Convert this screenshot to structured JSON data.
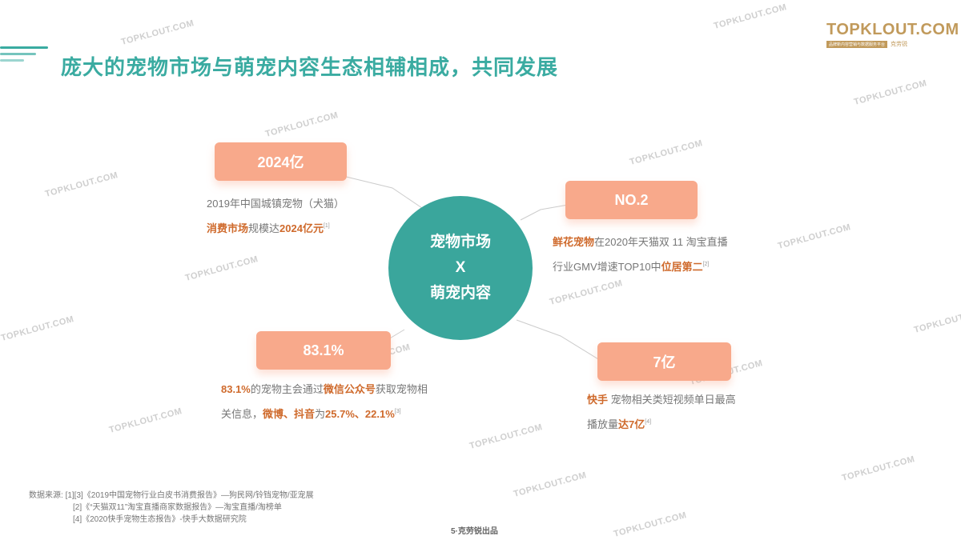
{
  "header": {
    "title": "庞大的宠物市场与萌宠内容生态相辅相成，共同发展"
  },
  "logo": {
    "main": "TOPKLOUT.COM",
    "tagline": "品牌新内容营销与数据服务平台",
    "cn": "克劳锐"
  },
  "watermark": "TOPKLOUT.COM",
  "center": {
    "line1": "宠物市场",
    "line2": "X",
    "line3": "萌宠内容"
  },
  "colors": {
    "teal": "#3aa69c",
    "salmon": "#f8a98b",
    "highlight": "#cf6a2c"
  },
  "cards": [
    {
      "value": "2024亿",
      "l1": "2019年中国城镇宠物（犬猫）",
      "l2a": "消费市场",
      "l2b": "规模达",
      "l2c": "2024亿元",
      "ref": "[1]"
    },
    {
      "value": "NO.2",
      "l1a": "鲜花宠物",
      "l1b": "在2020年天猫双 11 淘宝直播",
      "l2a": "行业GMV增速TOP10中",
      "l2b": "位居第二",
      "ref": "[2]"
    },
    {
      "value": "83.1%",
      "l1a": "83.1%",
      "l1b": "的宠物主会通过",
      "l1c": "微信公众号",
      "l1d": "获取宠物相",
      "l2a": "关信息，",
      "l2b": "微博、抖音",
      "l2c": "为",
      "l2d": "25.7%、22.1%",
      "ref": "[3]"
    },
    {
      "value": "7亿",
      "l1a": "快手",
      "l1b": " 宠物相关类短视频单日最高",
      "l2a": "播放量",
      "l2b": "达7亿",
      "ref": "[4]"
    }
  ],
  "sources": {
    "label": "数据来源:",
    "items": [
      "[1][3]《2019中国宠物行业白皮书消费报告》—狗民网/铃铛宠物/亚宠展",
      "[2]《“天猫双11”淘宝直播商家数据报告》—淘宝直播/淘榜单",
      "[4]《2020快手宠物生态报告》-快手大数据研究院"
    ]
  },
  "footer": "5·克劳锐出品"
}
